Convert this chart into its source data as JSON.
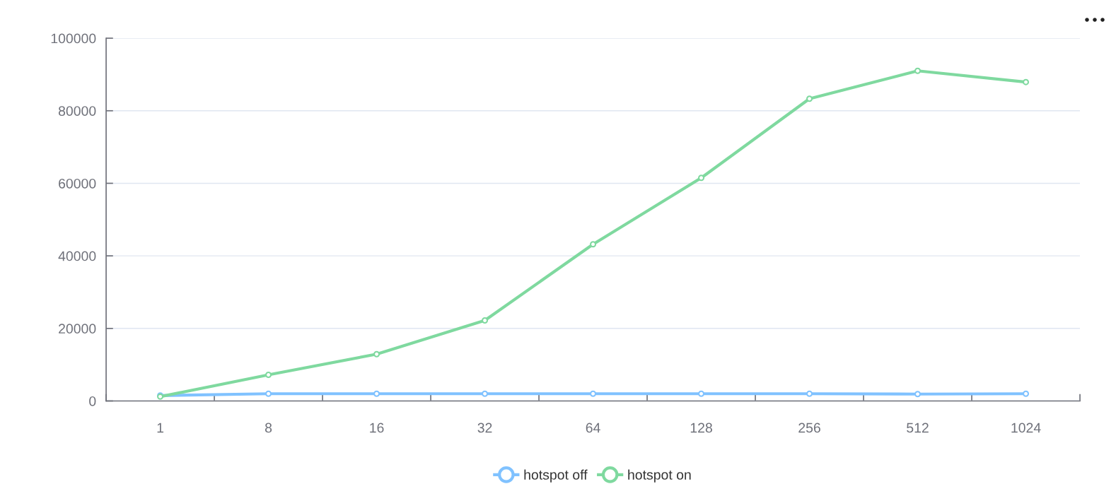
{
  "chart_data": {
    "type": "line",
    "categories": [
      "1",
      "8",
      "16",
      "32",
      "64",
      "128",
      "256",
      "512",
      "1024"
    ],
    "series": [
      {
        "name": "hotspot off",
        "color": "#80c2ff",
        "values": [
          1500,
          2000,
          2000,
          2000,
          2000,
          2000,
          2000,
          1900,
          2000
        ]
      },
      {
        "name": "hotspot on",
        "color": "#7fd99f",
        "values": [
          1200,
          7200,
          12900,
          22200,
          43200,
          61500,
          83300,
          91000,
          87900
        ]
      }
    ],
    "ylim": [
      0,
      100000
    ],
    "yticks": [
      0,
      20000,
      40000,
      60000,
      80000,
      100000
    ],
    "grid": "y",
    "legend": "bottom",
    "marker": "circle",
    "line_style": "solid"
  }
}
